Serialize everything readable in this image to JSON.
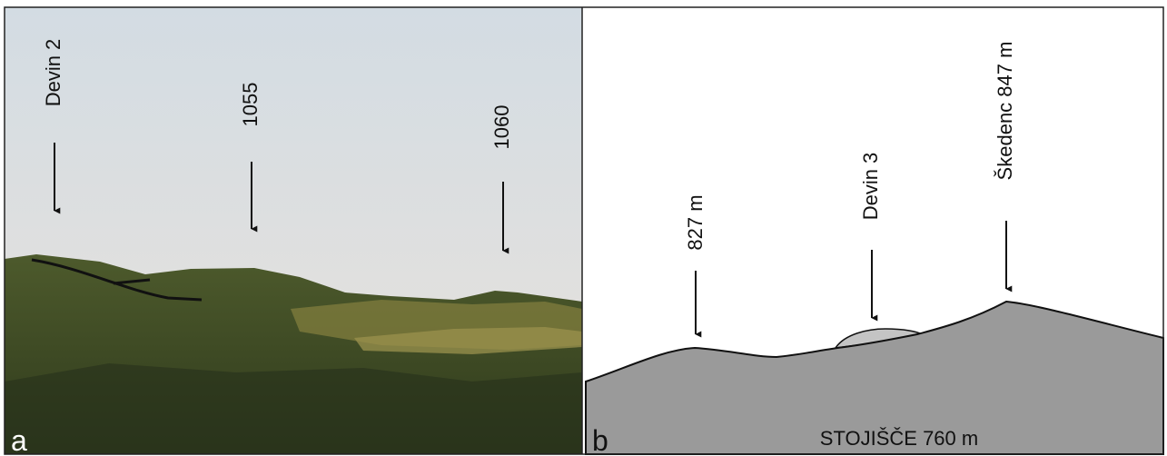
{
  "panel_a": {
    "letter": "a",
    "labels": [
      "Devin 2",
      "1055",
      "1060"
    ]
  },
  "panel_b": {
    "letter": "b",
    "labels": [
      "827 m",
      "Devin 3",
      "Škedenc 847 m"
    ],
    "base_label": "STOJIŠČE 760 m"
  }
}
